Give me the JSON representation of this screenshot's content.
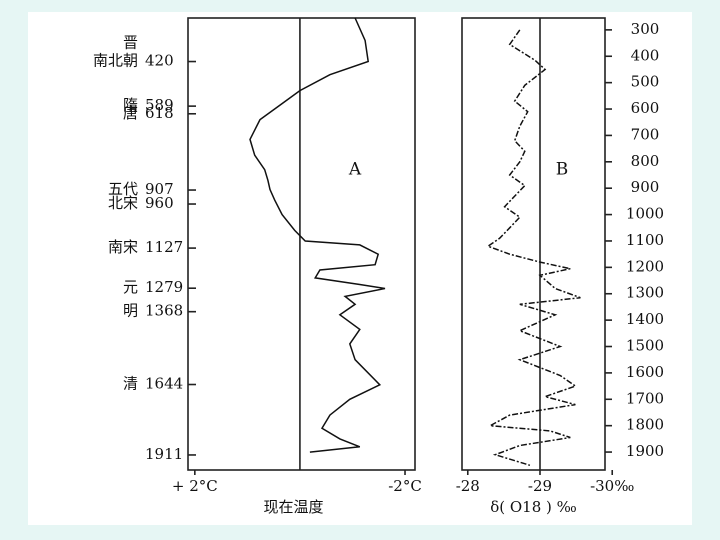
{
  "chart_data": [
    {
      "type": "line",
      "label": "A",
      "xlim": [
        255,
        1968
      ],
      "ylim": [
        2.13,
        -2.19
      ],
      "yticks": [
        {
          "value": 2,
          "label": "+ 2°C"
        },
        {
          "value": -2,
          "label": "-2°C"
        }
      ],
      "ylabel": "现在温度",
      "reference": 0,
      "dynasties": [
        {
          "name": "晋"
        },
        {
          "name": "南北朝",
          "year": 420
        },
        {
          "name": "隋",
          "year": 589
        },
        {
          "name": "唐",
          "year": 618
        },
        {
          "name": "五代",
          "year": 907
        },
        {
          "name": "北宋",
          "year": 960
        },
        {
          "name": "南宋",
          "year": 1127
        },
        {
          "name": "元",
          "year": 1279
        },
        {
          "name": "明",
          "year": 1368
        },
        {
          "name": "清",
          "year": 1644
        },
        {
          "year": 1911
        }
      ],
      "x": [
        255,
        340,
        420,
        470,
        530,
        585,
        640,
        715,
        775,
        830,
        870,
        905,
        945,
        1000,
        1060,
        1100,
        1115,
        1150,
        1190,
        1210,
        1240,
        1265,
        1280,
        1310,
        1340,
        1380,
        1435,
        1490,
        1550,
        1645,
        1700,
        1760,
        1810,
        1850,
        1880,
        1900
      ],
      "values": [
        -1.05,
        -1.24,
        -1.3,
        -0.57,
        0,
        0.38,
        0.76,
        0.95,
        0.86,
        0.67,
        0.61,
        0.57,
        0.48,
        0.34,
        0.1,
        -0.1,
        -1.14,
        -1.49,
        -1.43,
        -0.38,
        -0.29,
        -1.14,
        -1.62,
        -0.86,
        -1.05,
        -0.76,
        -1.14,
        -0.95,
        -1.05,
        -1.52,
        -0.95,
        -0.57,
        -0.42,
        -0.76,
        -1.14,
        -0.19
      ]
    },
    {
      "type": "line",
      "label": "B",
      "xlim": [
        255,
        1968
      ],
      "ylim": [
        -27.92,
        -29.9
      ],
      "xticks": [
        300,
        400,
        500,
        600,
        700,
        800,
        900,
        1000,
        1100,
        1200,
        1300,
        1400,
        1500,
        1600,
        1700,
        1800,
        1900
      ],
      "yticks": [
        -28,
        -29,
        {
          "value": -30,
          "label": "-30‰"
        }
      ],
      "ylabel": "δ( O18 ) ‰",
      "reference": -29,
      "x": [
        300,
        355,
        415,
        450,
        510,
        570,
        610,
        665,
        720,
        760,
        800,
        850,
        890,
        930,
        970,
        1010,
        1050,
        1090,
        1120,
        1150,
        1180,
        1205,
        1230,
        1280,
        1315,
        1340,
        1380,
        1440,
        1500,
        1550,
        1610,
        1650,
        1690,
        1720,
        1760,
        1800,
        1820,
        1845,
        1875,
        1910,
        1950
      ],
      "values": [
        -28.72,
        -28.58,
        -28.93,
        -29.07,
        -28.79,
        -28.65,
        -28.83,
        -28.72,
        -28.65,
        -28.79,
        -28.72,
        -28.58,
        -28.79,
        -28.65,
        -28.51,
        -28.72,
        -28.58,
        -28.44,
        -28.28,
        -28.58,
        -29.0,
        -29.42,
        -29.0,
        -29.21,
        -29.56,
        -28.72,
        -29.21,
        -28.72,
        -29.28,
        -28.72,
        -29.28,
        -29.49,
        -29.07,
        -29.49,
        -28.58,
        -28.31,
        -29.14,
        -29.42,
        -28.72,
        -28.38,
        -28.86
      ]
    }
  ]
}
